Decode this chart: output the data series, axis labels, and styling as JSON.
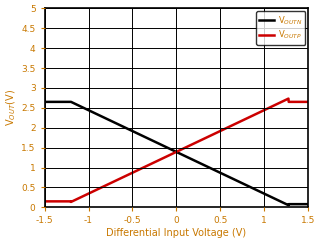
{
  "xlabel": "Differential Input Voltage (V)",
  "ylabel": "V$_{OUT}$(V)",
  "xlim": [
    -1.5,
    1.5
  ],
  "ylim": [
    0,
    5
  ],
  "xticks": [
    -1.5,
    -1.0,
    -0.5,
    0.0,
    0.5,
    1.0,
    1.5
  ],
  "yticks": [
    0,
    0.5,
    1.0,
    1.5,
    2.0,
    2.5,
    3.0,
    3.5,
    4.0,
    4.5,
    5.0
  ],
  "vout_n_color": "#000000",
  "vout_p_color": "#cc0000",
  "label_n": "V$_{OUTN}$",
  "label_p": "V$_{OUTP}$",
  "axis_label_color": "#c87800",
  "tick_label_color": "#c87800",
  "legend_text_color": "#c87800",
  "background_color": "#ffffff",
  "grid_color": "#000000",
  "line_width": 1.8,
  "ylabel_color": "#c87800",
  "xlabel_color": "#c87800"
}
